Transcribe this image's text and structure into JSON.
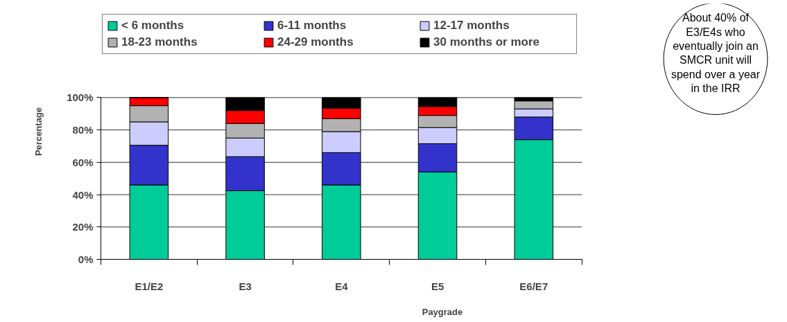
{
  "chart_data": {
    "type": "bar",
    "stacked": true,
    "categories": [
      "E1/E2",
      "E3",
      "E4",
      "E5",
      "E6/E7"
    ],
    "series": [
      {
        "name": "< 6 months",
        "color": "#00cc99",
        "values": [
          46,
          42.5,
          46,
          54,
          74
        ]
      },
      {
        "name": "6-11 months",
        "color": "#3333cc",
        "values": [
          24.5,
          21,
          20,
          17.5,
          14
        ]
      },
      {
        "name": "12-17 months",
        "color": "#ccccff",
        "values": [
          14.5,
          11.5,
          13,
          10,
          5
        ]
      },
      {
        "name": "18-23 months",
        "color": "#b2b2b2",
        "values": [
          10,
          9,
          8,
          7.5,
          5
        ]
      },
      {
        "name": "24-29 months",
        "color": "#ff0000",
        "values": [
          5,
          8,
          6.5,
          5.5,
          0
        ]
      },
      {
        "name": "30 months or more",
        "color": "#000000",
        "values": [
          0,
          8,
          6.5,
          5.5,
          2
        ]
      }
    ],
    "xlabel": "Paygrade",
    "ylabel": "Percentage",
    "ylim": [
      0,
      100
    ],
    "yticks": [
      {
        "value": 0,
        "label": "0%"
      },
      {
        "value": 20,
        "label": "20%"
      },
      {
        "value": 40,
        "label": "40%"
      },
      {
        "value": 60,
        "label": "60%"
      },
      {
        "value": 80,
        "label": "80%"
      },
      {
        "value": 100,
        "label": "100%"
      }
    ],
    "grid": "y",
    "legend": "top",
    "annotations": [
      "About 40% of\nE3/E4s who\neventually join an\nSMCR unit will\nspend over a year\nin the IRR"
    ]
  }
}
